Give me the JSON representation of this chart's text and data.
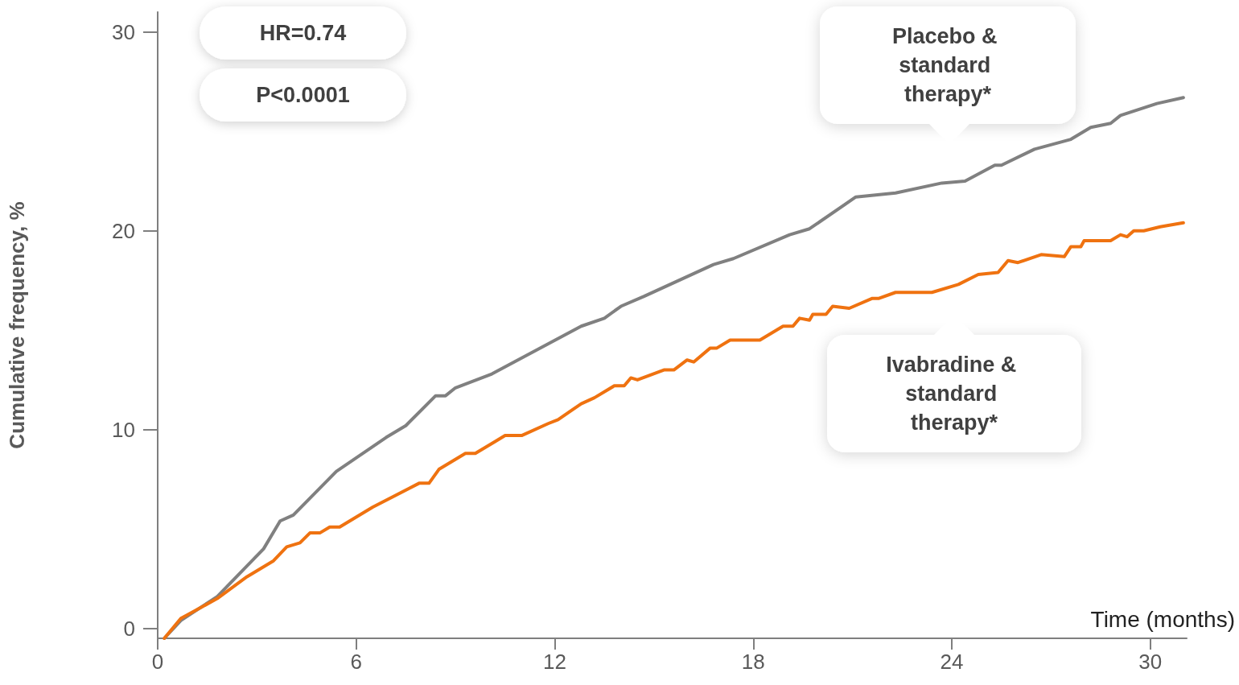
{
  "chart_data": {
    "type": "line",
    "ylabel": "Cumulative frequency, %",
    "xlabel": "Time (months)",
    "annotations": [
      "HR=0.74",
      "P<0.0001"
    ],
    "xlim": [
      0,
      31.1
    ],
    "xticks": [
      0,
      6,
      12,
      18,
      24,
      30
    ],
    "ylim": [
      -0.5,
      31
    ],
    "yticks": [
      0,
      10,
      20,
      30
    ],
    "grid": false,
    "legend": false,
    "marker": "none",
    "line_style": "solid",
    "series": [
      {
        "name": "Placebo & standard therapy*",
        "color": "#808080",
        "x": [
          0.2,
          0.7,
          1.8,
          3.2,
          3.7,
          4.1,
          5.4,
          6.9,
          7.5,
          8.4,
          8.7,
          9.0,
          10.1,
          12.8,
          13.5,
          14.0,
          14.7,
          16.8,
          17.4,
          19.1,
          19.7,
          21.1,
          22.3,
          23.7,
          24.4,
          25.3,
          25.5,
          26.5,
          27.6,
          28.2,
          28.8,
          29.1,
          30.2,
          31.0
        ],
        "values": [
          -0.5,
          0.4,
          1.6,
          4.0,
          5.4,
          5.7,
          7.9,
          9.6,
          10.2,
          11.7,
          11.7,
          12.1,
          12.8,
          15.2,
          15.6,
          16.2,
          16.7,
          18.3,
          18.6,
          19.8,
          20.1,
          21.7,
          21.9,
          22.4,
          22.5,
          23.3,
          23.3,
          24.1,
          24.6,
          25.2,
          25.4,
          25.8,
          26.4,
          26.7
        ]
      },
      {
        "name": "Ivabradine & standard therapy*",
        "color": "#ef7210",
        "x": [
          0.2,
          0.7,
          1.8,
          2.7,
          3.5,
          3.9,
          4.3,
          4.6,
          4.9,
          5.2,
          5.5,
          6.5,
          7.9,
          8.2,
          8.5,
          9.3,
          9.6,
          10.2,
          10.5,
          11.0,
          11.8,
          12.1,
          12.8,
          13.2,
          13.8,
          14.1,
          14.3,
          14.5,
          15.3,
          15.6,
          16.0,
          16.2,
          16.7,
          16.9,
          17.3,
          18.2,
          18.9,
          19.2,
          19.4,
          19.7,
          19.8,
          20.2,
          20.4,
          20.9,
          21.6,
          21.8,
          22.3,
          23.4,
          24.2,
          24.8,
          25.4,
          25.7,
          26.0,
          26.7,
          27.4,
          27.6,
          27.9,
          28.0,
          28.8,
          29.1,
          29.3,
          29.5,
          29.8,
          30.3,
          31.0
        ],
        "values": [
          -0.5,
          0.5,
          1.5,
          2.6,
          3.4,
          4.1,
          4.3,
          4.8,
          4.8,
          5.1,
          5.1,
          6.1,
          7.3,
          7.3,
          8.0,
          8.8,
          8.8,
          9.4,
          9.7,
          9.7,
          10.3,
          10.5,
          11.3,
          11.6,
          12.2,
          12.2,
          12.6,
          12.5,
          13.0,
          13.0,
          13.5,
          13.4,
          14.1,
          14.1,
          14.5,
          14.5,
          15.2,
          15.2,
          15.6,
          15.5,
          15.8,
          15.8,
          16.2,
          16.1,
          16.6,
          16.6,
          16.9,
          16.9,
          17.3,
          17.8,
          17.9,
          18.5,
          18.4,
          18.8,
          18.7,
          19.2,
          19.2,
          19.5,
          19.5,
          19.8,
          19.7,
          20.0,
          20.0,
          20.2,
          20.4
        ]
      }
    ]
  }
}
